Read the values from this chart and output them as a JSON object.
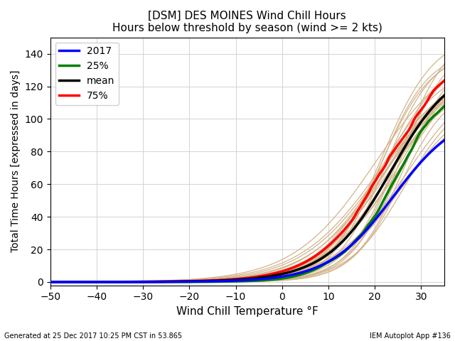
{
  "title1": "[DSM] DES MOINES Wind Chill Hours",
  "title2": "Hours below threshold by season (wind >= 2 kts)",
  "xlabel": "Wind Chill Temperature °F",
  "ylabel": "Total Time Hours [expressed in days]",
  "footer_left": "Generated at 25 Dec 2017 10:25 PM CST in 53.865",
  "footer_right": "IEM Autoplot App #136",
  "xmin": -50,
  "xmax": 35,
  "ymin": -2,
  "ymax": 150,
  "xticks": [
    -50,
    -40,
    -30,
    -20,
    -10,
    0,
    10,
    20,
    30
  ],
  "yticks": [
    0,
    20,
    40,
    60,
    80,
    100,
    120,
    140
  ],
  "num_bg_seasons": 30,
  "bg_color": "#d2b48c",
  "line_2017_color": "#0000ff",
  "line_25pct_color": "#008000",
  "line_mean_color": "#000000",
  "line_75pct_color": "#ff0000",
  "legend_labels": [
    "2017",
    "25%",
    "mean",
    "75%"
  ],
  "seed": 42
}
